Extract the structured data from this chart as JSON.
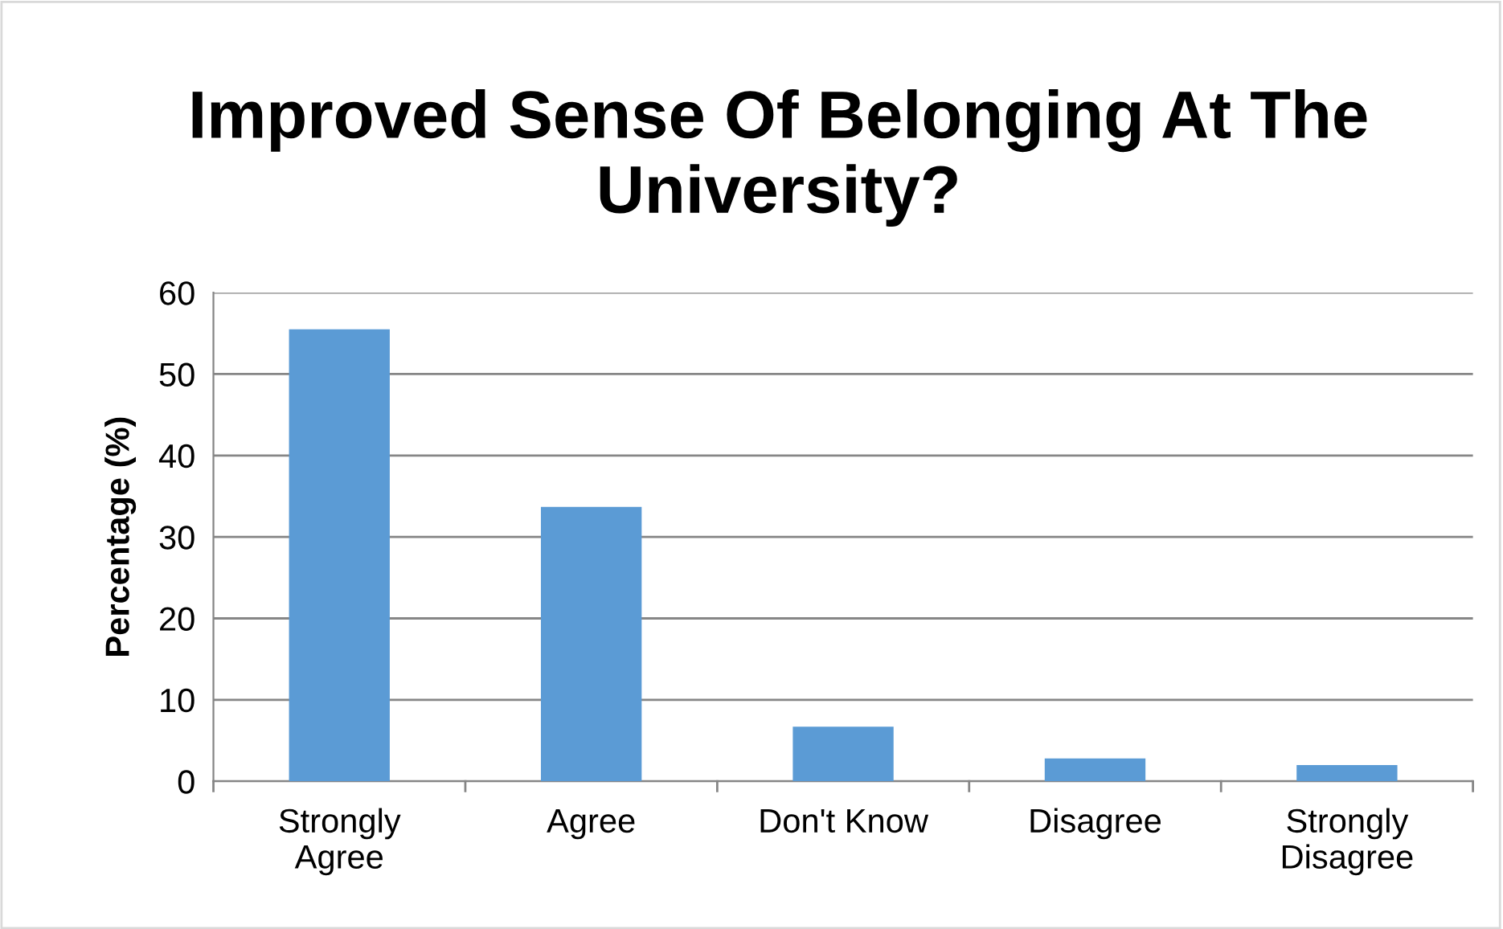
{
  "chart_data": {
    "type": "bar",
    "title": "Improved Sense Of Belonging At The\nUniversity?",
    "ylabel": "Percentage (%)",
    "categories": [
      "Strongly\nAgree",
      "Agree",
      "Don't Know",
      "Disagree",
      "Strongly\nDisagree"
    ],
    "values": [
      55.5,
      33.7,
      6.7,
      2.8,
      2.0
    ],
    "color": "#5b9bd5",
    "ylim": [
      0,
      60
    ],
    "yticks": [
      0,
      10,
      20,
      30,
      40,
      50,
      60
    ],
    "grid": "y",
    "legend": false
  }
}
